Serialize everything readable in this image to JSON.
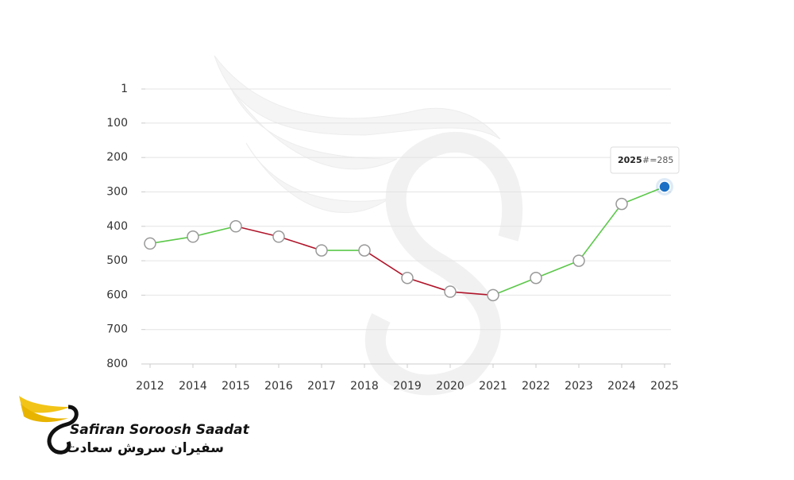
{
  "chart_data": {
    "type": "line",
    "categories": [
      "2012",
      "2014",
      "2015",
      "2016",
      "2017",
      "2018",
      "2019",
      "2020",
      "2021",
      "2022",
      "2023",
      "2024",
      "2025"
    ],
    "values": [
      450,
      430,
      400,
      430,
      470,
      470,
      550,
      590,
      600,
      550,
      500,
      335,
      285
    ],
    "value_labels": [
      null,
      null,
      null,
      null,
      null,
      null,
      null,
      null,
      null,
      null,
      null,
      null,
      "#=285"
    ],
    "ylim": [
      800,
      1
    ],
    "yticks": [
      1,
      100,
      200,
      300,
      400,
      500,
      600,
      700,
      800
    ],
    "grid": true,
    "improve_color": "#5cc84a",
    "decline_color": "#b0152a",
    "point_color": "#ffffff",
    "highlight_color": "#1a6fc4"
  },
  "logo": {
    "name": "Safiran Soroosh Saadat",
    "name_fa": "سفیران سروش سعادت"
  }
}
